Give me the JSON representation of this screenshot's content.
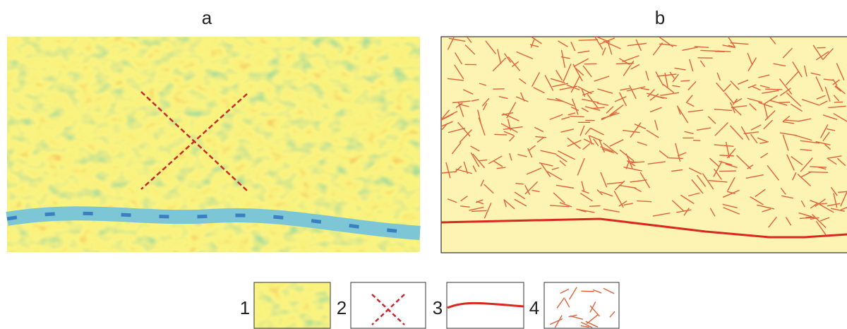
{
  "panels": {
    "a": {
      "label": "a"
    },
    "b": {
      "label": "b"
    }
  },
  "legend": [
    {
      "label": "1"
    },
    {
      "label": "2"
    },
    {
      "label": "3"
    },
    {
      "label": "4"
    }
  ]
}
